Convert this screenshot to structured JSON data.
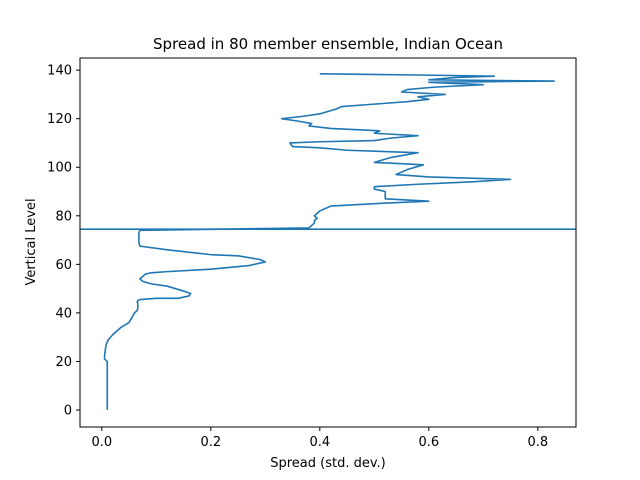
{
  "chart_data": {
    "type": "line",
    "title": "Spread in 80 member ensemble, Indian Ocean",
    "xlabel": "Spread (std. dev.)",
    "ylabel": "Vertical Level",
    "xlim": [
      -0.04,
      0.87
    ],
    "ylim": [
      -7,
      145
    ],
    "xticks": [
      0.0,
      0.2,
      0.4,
      0.6,
      0.8
    ],
    "xtick_labels": [
      "0.0",
      "0.2",
      "0.4",
      "0.6",
      "0.8"
    ],
    "yticks": [
      0,
      20,
      40,
      60,
      80,
      100,
      120,
      140
    ],
    "ytick_labels": [
      "0",
      "20",
      "40",
      "60",
      "80",
      "100",
      "120",
      "140"
    ],
    "grid": false,
    "line_color": "#1f77b4",
    "series": [
      {
        "x": [
          0.01,
          0.01,
          0.01,
          0.01,
          0.01,
          0.01,
          0.005,
          0.005,
          0.006,
          0.008,
          0.012,
          0.02,
          0.035,
          0.05,
          0.055,
          0.06,
          0.065,
          0.066,
          0.066,
          0.066,
          0.065,
          0.066,
          0.07,
          0.1,
          0.14,
          0.16,
          0.163,
          0.15,
          0.12,
          0.09,
          0.075,
          0.07,
          0.075,
          0.08,
          0.09,
          0.12,
          0.2,
          0.27,
          0.3,
          0.29,
          0.25,
          0.2,
          0.12,
          0.07,
          0.068,
          0.068,
          0.068,
          0.07,
          0.38,
          0.39,
          0.39,
          0.395,
          0.39,
          0.395,
          0.4,
          0.42,
          0.5,
          0.6,
          0.52,
          0.52,
          0.52,
          0.52,
          0.5,
          0.5,
          0.58,
          0.68,
          0.75,
          0.6,
          0.54,
          0.56,
          0.59,
          0.5,
          0.53,
          0.58,
          0.45,
          0.4,
          0.35,
          0.345,
          0.4,
          0.5,
          0.53,
          0.58,
          0.5,
          0.51,
          0.42,
          0.38,
          0.385,
          0.36,
          0.33,
          0.37,
          0.4,
          0.43,
          0.44,
          0.5,
          0.56,
          0.6,
          0.58,
          0.63,
          0.55,
          0.56,
          0.61,
          0.7,
          0.6,
          0.83,
          0.6,
          0.65,
          0.72,
          0.58,
          0.4
        ],
        "y": [
          0,
          4,
          8,
          12,
          16,
          20,
          21,
          22,
          24,
          27,
          29,
          31,
          34,
          36,
          38,
          40,
          41,
          42,
          43,
          44,
          44.5,
          45,
          45.5,
          46,
          46,
          47,
          48,
          49,
          51,
          52,
          53,
          54,
          55,
          56,
          56.5,
          57,
          58,
          59.5,
          61,
          62,
          63.5,
          64,
          66,
          67.5,
          69,
          71,
          73,
          74,
          75,
          77,
          78,
          79,
          80,
          81,
          82,
          84,
          85,
          86,
          87,
          88,
          89,
          90,
          91,
          92,
          93,
          94,
          95,
          96,
          97,
          99,
          101,
          102,
          104,
          106,
          107,
          108,
          108.5,
          110,
          110.5,
          111,
          112,
          113,
          114,
          115,
          116,
          117,
          118,
          119,
          120,
          121,
          122,
          124,
          125,
          126,
          127,
          128,
          129,
          130,
          131,
          132,
          133,
          134,
          135,
          135.5,
          136,
          137,
          137.5,
          138,
          138.5
        ]
      }
    ],
    "hlines": [
      {
        "y": 74.5
      }
    ]
  }
}
